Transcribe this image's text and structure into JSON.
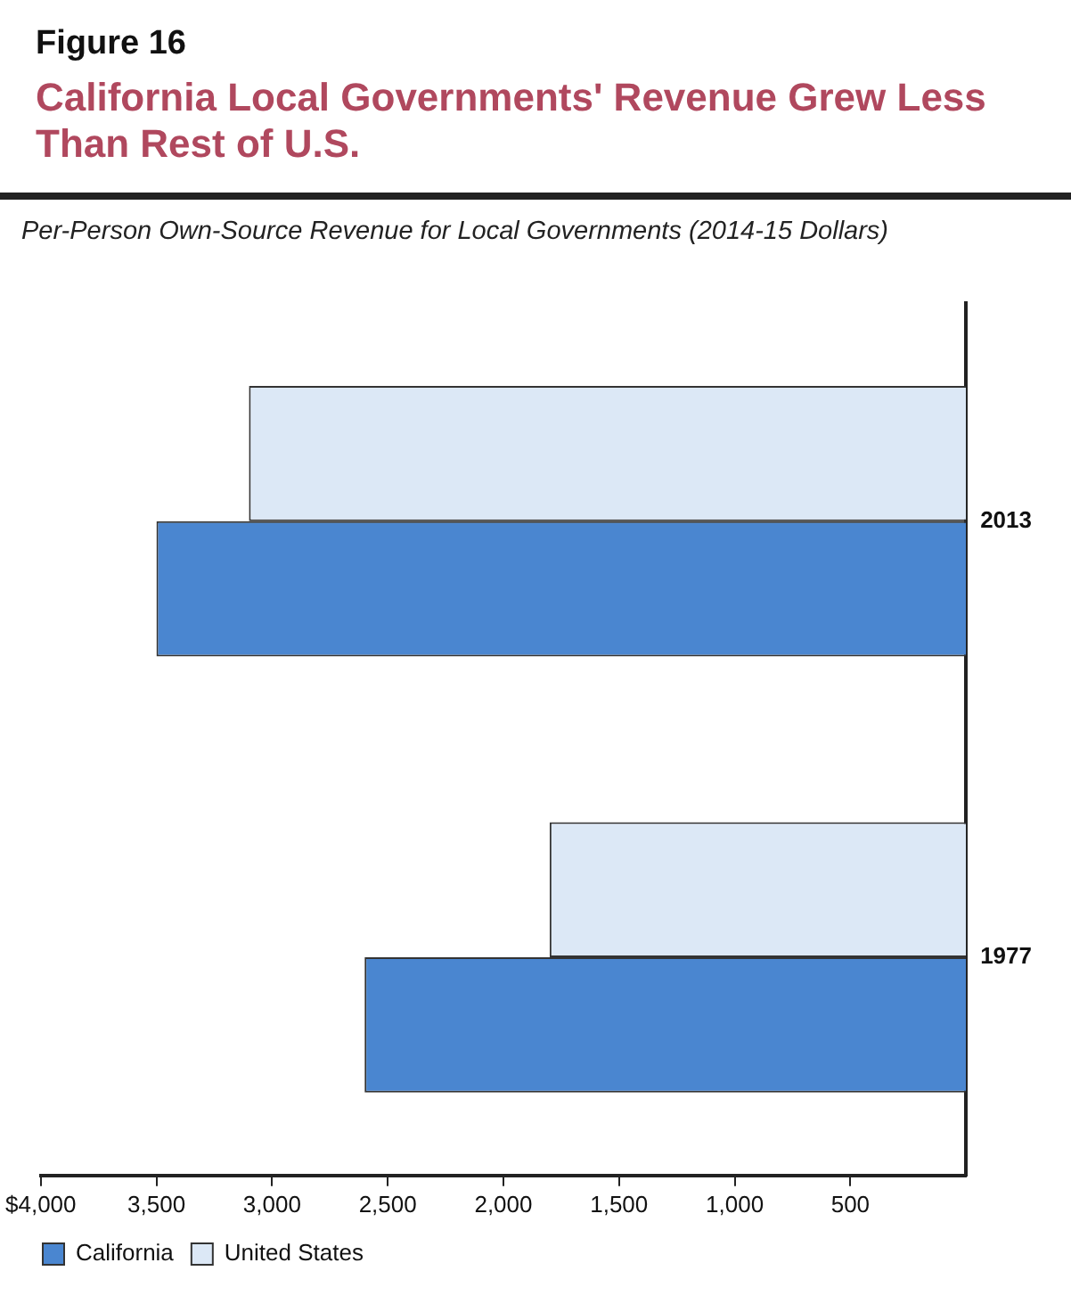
{
  "chart_data": {
    "type": "bar",
    "orientation": "horizontal",
    "title": "California Local Governments' Revenue Grew Less Than Rest of U.S.",
    "subtitle": "Per-Person Own-Source Revenue for Local Governments (2014-15 Dollars)",
    "annotations": [
      "Figure 16"
    ],
    "categories": [
      "2013",
      "1977"
    ],
    "series": [
      {
        "name": "United States",
        "color": "#dce8f6",
        "values": [
          3100,
          1800
        ]
      },
      {
        "name": "California",
        "color": "#4a86d0",
        "values": [
          3500,
          2600
        ]
      }
    ],
    "xlim": [
      4000,
      0
    ],
    "xticks": [
      {
        "value": 4000,
        "label": "$4,000"
      },
      {
        "value": 3500,
        "label": "3,500"
      },
      {
        "value": 3000,
        "label": "3,000"
      },
      {
        "value": 2500,
        "label": "2,500"
      },
      {
        "value": 2000,
        "label": "2,000"
      },
      {
        "value": 1500,
        "label": "1,500"
      },
      {
        "value": 1000,
        "label": "1,000"
      },
      {
        "value": 500,
        "label": "500"
      }
    ],
    "grid": false,
    "legend": "bottom left"
  }
}
